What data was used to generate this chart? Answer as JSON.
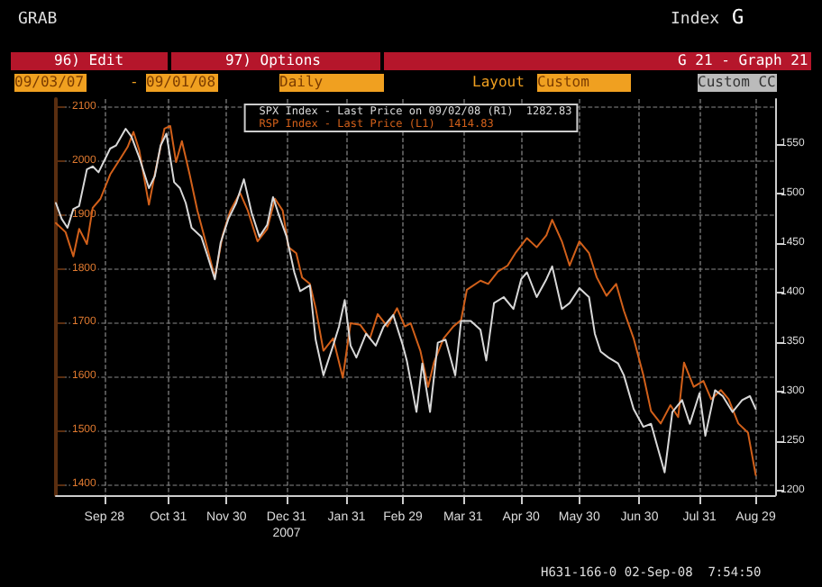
{
  "chart_data": {
    "type": "line",
    "annotations": [
      "GRAB",
      "Index",
      "G",
      "96) Edit",
      "97) Options",
      "G 21 - Graph 21",
      "09/03/07",
      "-",
      "09/01/08",
      "Daily",
      "Layout",
      "Custom",
      "Custom CC",
      "H631-166-0 02-Sep-08  7:54:50"
    ],
    "xlim": [
      "2007-09-03",
      "2008-09-08"
    ],
    "xticks": [
      {
        "value": "2007-09-28",
        "label": "Sep 28"
      },
      {
        "value": "2007-10-31",
        "label": "Oct 31"
      },
      {
        "value": "2007-11-30",
        "label": "Nov 30"
      },
      {
        "value": "2007-12-31",
        "label": "Dec 31\n2007"
      },
      {
        "value": "2008-01-31",
        "label": "Jan 31"
      },
      {
        "value": "2008-02-29",
        "label": "Feb 29"
      },
      {
        "value": "2008-03-31",
        "label": "Mar 31"
      },
      {
        "value": "2008-04-30",
        "label": "Apr 30"
      },
      {
        "value": "2008-05-30",
        "label": "May 30"
      },
      {
        "value": "2008-06-30",
        "label": "Jun 30"
      },
      {
        "value": "2008-07-31",
        "label": "Jul 31"
      },
      {
        "value": "2008-08-29",
        "label": "Aug 29"
      }
    ],
    "ylim": [
      1380,
      2115
    ],
    "yticks": [
      1400,
      1500,
      1600,
      1700,
      1800,
      1900,
      2000,
      2100
    ],
    "y2lim": [
      1195,
      1595
    ],
    "y2ticks": [
      1200,
      1250,
      1300,
      1350,
      1400,
      1450,
      1500,
      1550
    ],
    "grid": true,
    "legend": "top",
    "line_style": "solid",
    "marker": "none",
    "series": [
      {
        "name": "SPX Index - Last Price on 09/02/08 (R1)  1282.83",
        "color": "#d8d8d8",
        "axis": "y2",
        "x": [
          "2007-09-03",
          "2007-09-06",
          "2007-09-09",
          "2007-09-12",
          "2007-09-15",
          "2007-09-19",
          "2007-09-22",
          "2007-09-25",
          "2007-09-28",
          "2007-10-01",
          "2007-10-04",
          "2007-10-09",
          "2007-10-12",
          "2007-10-16",
          "2007-10-21",
          "2007-10-24",
          "2007-10-27",
          "2007-10-30",
          "2007-11-03",
          "2007-11-06",
          "2007-11-09",
          "2007-11-12",
          "2007-11-17",
          "2007-11-20",
          "2007-11-24",
          "2007-11-27",
          "2007-12-01",
          "2007-12-05",
          "2007-12-09",
          "2007-12-13",
          "2007-12-17",
          "2007-12-21",
          "2007-12-24",
          "2007-12-27",
          "2007-12-31",
          "2008-01-04",
          "2008-01-07",
          "2008-01-12",
          "2008-01-15",
          "2008-01-19",
          "2008-01-24",
          "2008-01-27",
          "2008-01-30",
          "2008-02-02",
          "2008-02-05",
          "2008-02-10",
          "2008-02-15",
          "2008-02-19",
          "2008-02-24",
          "2008-02-29",
          "2008-03-02",
          "2008-03-07",
          "2008-03-10",
          "2008-03-14",
          "2008-03-18",
          "2008-03-22",
          "2008-03-27",
          "2008-03-30",
          "2008-04-04",
          "2008-04-09",
          "2008-04-12",
          "2008-04-16",
          "2008-04-21",
          "2008-04-26",
          "2008-04-30",
          "2008-05-03",
          "2008-05-08",
          "2008-05-13",
          "2008-05-16",
          "2008-05-21",
          "2008-05-25",
          "2008-05-30",
          "2008-06-04",
          "2008-06-07",
          "2008-06-10",
          "2008-06-14",
          "2008-06-19",
          "2008-06-22",
          "2008-06-27",
          "2008-07-02",
          "2008-07-06",
          "2008-07-09",
          "2008-07-13",
          "2008-07-17",
          "2008-07-22",
          "2008-07-26",
          "2008-07-31",
          "2008-08-03",
          "2008-08-08",
          "2008-08-12",
          "2008-08-17",
          "2008-08-22",
          "2008-08-26",
          "2008-08-29"
        ],
        "values": [
          1490,
          1474,
          1465,
          1484,
          1487,
          1524,
          1527,
          1521,
          1533,
          1545,
          1548,
          1565,
          1557,
          1536,
          1505,
          1517,
          1548,
          1560,
          1511,
          1505,
          1490,
          1465,
          1456,
          1438,
          1413,
          1450,
          1474,
          1490,
          1514,
          1480,
          1456,
          1468,
          1496,
          1478,
          1456,
          1420,
          1401,
          1407,
          1352,
          1316,
          1346,
          1365,
          1392,
          1346,
          1334,
          1358,
          1346,
          1365,
          1377,
          1346,
          1331,
          1279,
          1328,
          1279,
          1349,
          1352,
          1316,
          1371,
          1371,
          1362,
          1331,
          1389,
          1395,
          1383,
          1413,
          1420,
          1395,
          1413,
          1426,
          1383,
          1389,
          1404,
          1395,
          1358,
          1340,
          1334,
          1328,
          1316,
          1282,
          1264,
          1267,
          1246,
          1218,
          1279,
          1291,
          1267,
          1298,
          1255,
          1301,
          1295,
          1279,
          1291,
          1295,
          1282
        ]
      },
      {
        "name": "RSP Index - Last Price (L1)  1414.83",
        "color": "#d2601a",
        "x": [
          "2007-09-03",
          "2007-09-08",
          "2007-09-12",
          "2007-09-15",
          "2007-09-19",
          "2007-09-22",
          "2007-09-26",
          "2007-10-01",
          "2007-10-06",
          "2007-10-10",
          "2007-10-13",
          "2007-10-16",
          "2007-10-21",
          "2007-10-24",
          "2007-10-29",
          "2007-11-01",
          "2007-11-04",
          "2007-11-07",
          "2007-11-11",
          "2007-11-15",
          "2007-11-20",
          "2007-11-24",
          "2007-11-28",
          "2007-12-02",
          "2007-12-07",
          "2007-12-11",
          "2007-12-16",
          "2007-12-21",
          "2007-12-25",
          "2007-12-29",
          "2008-01-01",
          "2008-01-05",
          "2008-01-08",
          "2008-01-12",
          "2008-01-15",
          "2008-01-19",
          "2008-01-24",
          "2008-01-29",
          "2008-02-02",
          "2008-02-07",
          "2008-02-12",
          "2008-02-16",
          "2008-02-21",
          "2008-02-26",
          "2008-03-01",
          "2008-03-04",
          "2008-03-09",
          "2008-03-13",
          "2008-03-16",
          "2008-03-21",
          "2008-03-26",
          "2008-03-30",
          "2008-04-02",
          "2008-04-09",
          "2008-04-13",
          "2008-04-18",
          "2008-04-23",
          "2008-04-27",
          "2008-05-03",
          "2008-05-08",
          "2008-05-13",
          "2008-05-16",
          "2008-05-21",
          "2008-05-25",
          "2008-05-30",
          "2008-06-04",
          "2008-06-08",
          "2008-06-13",
          "2008-06-18",
          "2008-06-22",
          "2008-06-27",
          "2008-07-02",
          "2008-07-06",
          "2008-07-11",
          "2008-07-16",
          "2008-07-20",
          "2008-07-23",
          "2008-07-28",
          "2008-08-02",
          "2008-08-06",
          "2008-08-11",
          "2008-08-15",
          "2008-08-20",
          "2008-08-25",
          "2008-08-29"
        ],
        "values": [
          1885,
          1868,
          1823,
          1874,
          1846,
          1913,
          1930,
          1975,
          2003,
          2026,
          2054,
          2020,
          1919,
          1975,
          2060,
          2065,
          1998,
          2037,
          1975,
          1908,
          1840,
          1784,
          1862,
          1908,
          1941,
          1908,
          1851,
          1874,
          1930,
          1908,
          1840,
          1829,
          1784,
          1772,
          1727,
          1648,
          1671,
          1598,
          1699,
          1696,
          1671,
          1716,
          1693,
          1727,
          1693,
          1699,
          1648,
          1581,
          1626,
          1671,
          1693,
          1705,
          1761,
          1778,
          1772,
          1795,
          1806,
          1829,
          1857,
          1840,
          1862,
          1891,
          1851,
          1806,
          1851,
          1829,
          1784,
          1750,
          1772,
          1722,
          1671,
          1603,
          1536,
          1513,
          1547,
          1525,
          1626,
          1581,
          1592,
          1558,
          1575,
          1558,
          1513,
          1496,
          1417
        ]
      }
    ]
  }
}
